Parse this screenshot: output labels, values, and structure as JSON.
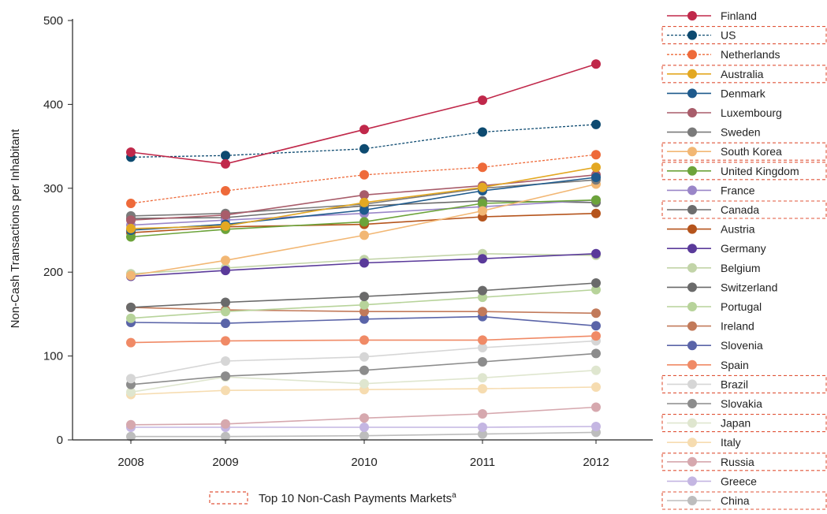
{
  "chart_data": {
    "type": "line",
    "ylabel": "Non-Cash Transactions per Inhabitant",
    "xlabel": "",
    "ylim": [
      0,
      500
    ],
    "yticks": [
      "0",
      "100",
      "200",
      "300",
      "400",
      "500"
    ],
    "categories": [
      "2008",
      "2009",
      "2010",
      "2011",
      "2012"
    ],
    "grid": false,
    "legend_position": "right",
    "footnote_label": "Top 10 Non-Cash Payments Markets",
    "footnote_sup": "a",
    "series": [
      {
        "name": "Finland",
        "color": "#c0284a",
        "dashed": false,
        "top10": false,
        "values": [
          343,
          329,
          370,
          405,
          448
        ]
      },
      {
        "name": "US",
        "color": "#0d4a70",
        "dashed": true,
        "top10": true,
        "values": [
          337,
          339,
          347,
          367,
          376
        ]
      },
      {
        "name": "Netherlands",
        "color": "#ee6a3a",
        "dashed": true,
        "top10": false,
        "values": [
          282,
          297,
          316,
          325,
          340
        ]
      },
      {
        "name": "Australia",
        "color": "#e3a822",
        "dashed": false,
        "top10": true,
        "values": [
          252,
          255,
          283,
          301,
          325
        ]
      },
      {
        "name": "Denmark",
        "color": "#1e5a8c",
        "dashed": false,
        "top10": false,
        "values": [
          250,
          257,
          274,
          297,
          313
        ]
      },
      {
        "name": "Luxembourg",
        "color": "#a85c6a",
        "dashed": false,
        "top10": false,
        "values": [
          262,
          268,
          292,
          303,
          316
        ]
      },
      {
        "name": "Sweden",
        "color": "#7a7a7a",
        "dashed": false,
        "top10": false,
        "values": [
          267,
          270,
          281,
          300,
          310
        ]
      },
      {
        "name": "South Korea",
        "color": "#f2b774",
        "dashed": false,
        "top10": true,
        "values": [
          196,
          214,
          244,
          273,
          305
        ]
      },
      {
        "name": "United Kingdom",
        "color": "#6ca33a",
        "dashed": false,
        "top10": true,
        "values": [
          242,
          251,
          260,
          282,
          286
        ]
      },
      {
        "name": "France",
        "color": "#9a86c8",
        "dashed": false,
        "top10": false,
        "values": [
          256,
          262,
          270,
          278,
          286
        ]
      },
      {
        "name": "Canada",
        "color": "#6c6c6c",
        "dashed": false,
        "top10": true,
        "values": [
          264,
          265,
          279,
          285,
          283
        ]
      },
      {
        "name": "Austria",
        "color": "#b5541c",
        "dashed": false,
        "top10": false,
        "values": [
          247,
          254,
          257,
          266,
          270
        ]
      },
      {
        "name": "Germany",
        "color": "#5a3a9a",
        "dashed": false,
        "top10": false,
        "values": [
          195,
          202,
          211,
          216,
          222
        ]
      },
      {
        "name": "Belgium",
        "color": "#c2d4a8",
        "dashed": false,
        "top10": false,
        "values": [
          198,
          205,
          215,
          222,
          220
        ]
      },
      {
        "name": "Switzerland",
        "color": "#6a6a6a",
        "dashed": false,
        "top10": false,
        "values": [
          158,
          164,
          171,
          178,
          187
        ]
      },
      {
        "name": "Portugal",
        "color": "#b7d39a",
        "dashed": false,
        "top10": false,
        "values": [
          145,
          153,
          161,
          170,
          179
        ]
      },
      {
        "name": "Ireland",
        "color": "#c27a5a",
        "dashed": false,
        "top10": false,
        "values": [
          158,
          155,
          153,
          153,
          151
        ]
      },
      {
        "name": "Slovenia",
        "color": "#5a64a8",
        "dashed": false,
        "top10": false,
        "values": [
          140,
          139,
          144,
          147,
          136
        ]
      },
      {
        "name": "Spain",
        "color": "#f08a66",
        "dashed": false,
        "top10": false,
        "values": [
          116,
          118,
          119,
          119,
          124
        ]
      },
      {
        "name": "Brazil",
        "color": "#d6d6d6",
        "dashed": false,
        "top10": true,
        "values": [
          73,
          94,
          99,
          110,
          118
        ]
      },
      {
        "name": "Slovakia",
        "color": "#8c8c8c",
        "dashed": false,
        "top10": false,
        "values": [
          66,
          76,
          83,
          93,
          103
        ]
      },
      {
        "name": "Japan",
        "color": "#dfe6cf",
        "dashed": false,
        "top10": true,
        "values": [
          57,
          75,
          67,
          74,
          83
        ]
      },
      {
        "name": "Italy",
        "color": "#f6dcb0",
        "dashed": false,
        "top10": false,
        "values": [
          54,
          59,
          60,
          61,
          63
        ]
      },
      {
        "name": "Russia",
        "color": "#d6a8ae",
        "dashed": false,
        "top10": true,
        "values": [
          18,
          19,
          26,
          31,
          39
        ]
      },
      {
        "name": "Greece",
        "color": "#c4b6e2",
        "dashed": false,
        "top10": false,
        "values": [
          15,
          15,
          15,
          15,
          16
        ]
      },
      {
        "name": "China",
        "color": "#bdbdbd",
        "dashed": false,
        "top10": true,
        "values": [
          4,
          4,
          5,
          7,
          9
        ]
      }
    ]
  }
}
